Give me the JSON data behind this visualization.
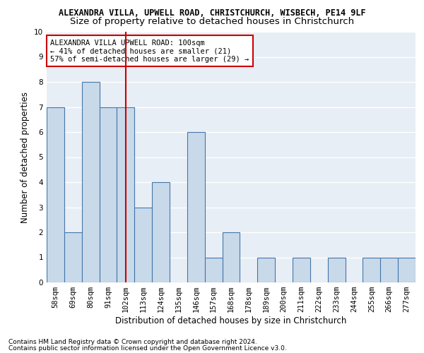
{
  "title1": "ALEXANDRA VILLA, UPWELL ROAD, CHRISTCHURCH, WISBECH, PE14 9LF",
  "title2": "Size of property relative to detached houses in Christchurch",
  "xlabel": "Distribution of detached houses by size in Christchurch",
  "ylabel": "Number of detached properties",
  "footnote1": "Contains HM Land Registry data © Crown copyright and database right 2024.",
  "footnote2": "Contains public sector information licensed under the Open Government Licence v3.0.",
  "annotation_line1": "ALEXANDRA VILLA UPWELL ROAD: 100sqm",
  "annotation_line2": "← 41% of detached houses are smaller (21)",
  "annotation_line3": "57% of semi-detached houses are larger (29) →",
  "bar_labels": [
    "58sqm",
    "69sqm",
    "80sqm",
    "91sqm",
    "102sqm",
    "113sqm",
    "124sqm",
    "135sqm",
    "146sqm",
    "157sqm",
    "168sqm",
    "178sqm",
    "189sqm",
    "200sqm",
    "211sqm",
    "222sqm",
    "233sqm",
    "244sqm",
    "255sqm",
    "266sqm",
    "277sqm"
  ],
  "bar_values": [
    7,
    2,
    8,
    7,
    7,
    3,
    4,
    0,
    6,
    1,
    2,
    0,
    1,
    0,
    1,
    0,
    1,
    0,
    1,
    1,
    1
  ],
  "bar_color": "#c8d9ea",
  "bar_edge_color": "#4477aa",
  "highlight_index": 4,
  "highlight_line_color": "#cc0000",
  "ylim": [
    0,
    10
  ],
  "yticks": [
    0,
    1,
    2,
    3,
    4,
    5,
    6,
    7,
    8,
    9,
    10
  ],
  "bg_color": "#e8eef5",
  "grid_color": "#ffffff",
  "annotation_box_color": "#cc0000",
  "title1_fontsize": 8.5,
  "title2_fontsize": 9.5,
  "axis_label_fontsize": 8.5,
  "tick_fontsize": 7.5,
  "annotation_fontsize": 7.5,
  "footnote_fontsize": 6.5
}
